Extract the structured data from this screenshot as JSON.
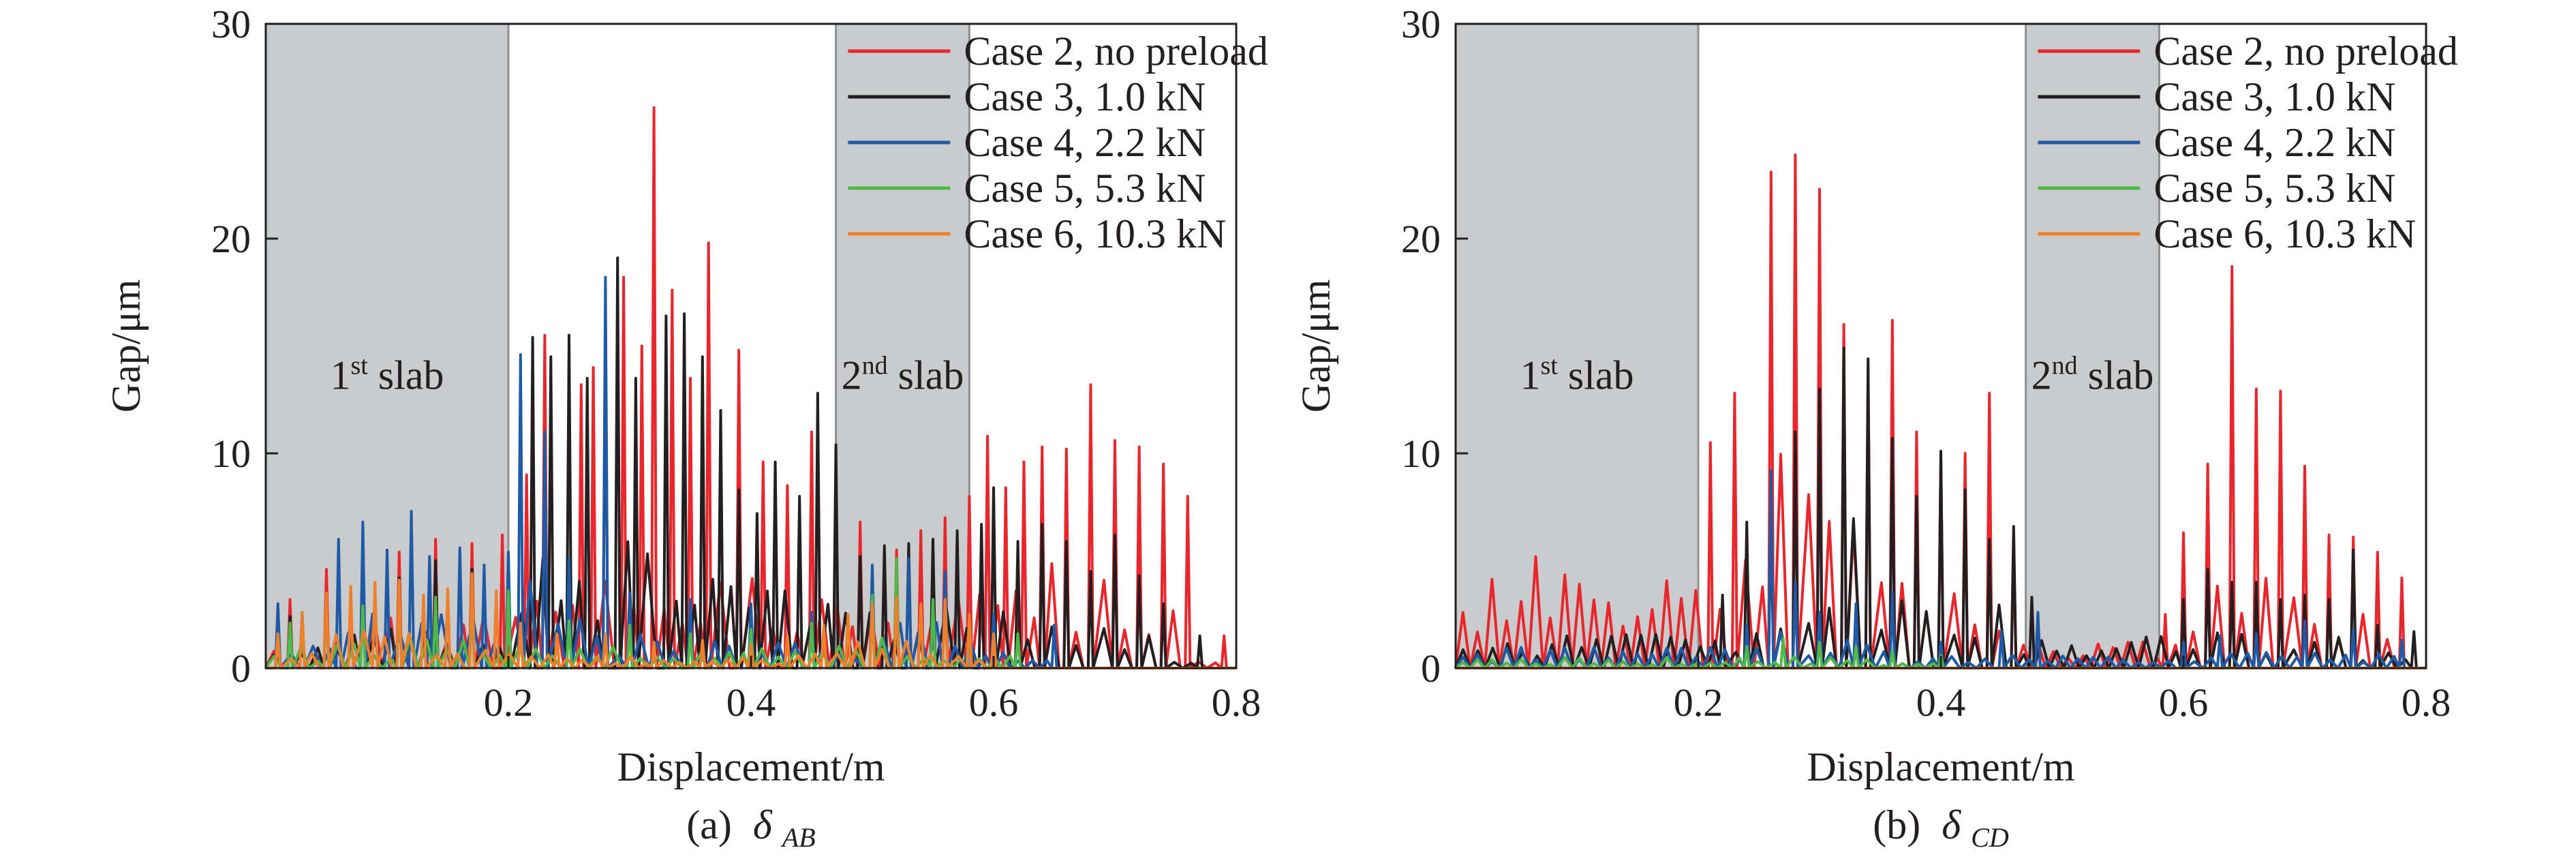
{
  "figure": {
    "panels": [
      {
        "caption_prefix": "(a)",
        "caption_symbol": "δ",
        "caption_subscript": "AB"
      },
      {
        "caption_prefix": "(b)",
        "caption_symbol": "δ",
        "caption_subscript": "CD"
      }
    ]
  },
  "chart_data": [
    {
      "type": "line",
      "title": "(a) δAB",
      "xlabel": "Displacement/m",
      "ylabel": "Gap/μm",
      "xlim": [
        0,
        0.8
      ],
      "ylim": [
        0,
        30
      ],
      "x_ticks": [
        0.2,
        0.4,
        0.6,
        0.8
      ],
      "x_tick_labels": [
        "0.2",
        "0.4",
        "0.6",
        "0.8"
      ],
      "y_ticks": [
        0,
        10,
        20,
        30
      ],
      "y_tick_labels": [
        "0",
        "10",
        "20",
        "30"
      ],
      "legend_position": "top-right",
      "shaded_regions": [
        {
          "label_main": "1",
          "label_sup": "st",
          "label_rest": " slab",
          "x_range": [
            0,
            0.2
          ]
        },
        {
          "label_main": "2",
          "label_sup": "nd",
          "label_rest": " slab",
          "x_range": [
            0.47,
            0.58
          ]
        }
      ],
      "series": [
        {
          "name": "Case 2, no preload",
          "color": "#e8262b",
          "peaks": [
            [
              0.02,
              3.2
            ],
            [
              0.05,
              4.6
            ],
            [
              0.08,
              5.6
            ],
            [
              0.11,
              5.4
            ],
            [
              0.14,
              6.0
            ],
            [
              0.17,
              5.8
            ],
            [
              0.195,
              6.2
            ],
            [
              0.215,
              9.0
            ],
            [
              0.23,
              15.5
            ],
            [
              0.26,
              13.2
            ],
            [
              0.27,
              14.0
            ],
            [
              0.295,
              18.2
            ],
            [
              0.31,
              15.0
            ],
            [
              0.32,
              26.1
            ],
            [
              0.335,
              17.6
            ],
            [
              0.35,
              13.5
            ],
            [
              0.365,
              19.8
            ],
            [
              0.39,
              14.8
            ],
            [
              0.41,
              9.6
            ],
            [
              0.43,
              8.5
            ],
            [
              0.45,
              11.0
            ],
            [
              0.49,
              6.8
            ],
            [
              0.52,
              5.5
            ],
            [
              0.54,
              6.4
            ],
            [
              0.56,
              7.0
            ],
            [
              0.58,
              8.0
            ],
            [
              0.595,
              10.8
            ],
            [
              0.61,
              8.4
            ],
            [
              0.625,
              9.6
            ],
            [
              0.64,
              10.3
            ],
            [
              0.66,
              10.2
            ],
            [
              0.68,
              13.2
            ],
            [
              0.7,
              10.6
            ],
            [
              0.72,
              10.3
            ],
            [
              0.74,
              9.5
            ],
            [
              0.76,
              8.0
            ],
            [
              0.79,
              1.5
            ]
          ]
        },
        {
          "name": "Case 3, 1.0 kN",
          "color": "#231f20",
          "peaks": [
            [
              0.02,
              2.4
            ],
            [
              0.05,
              3.3
            ],
            [
              0.08,
              4.0
            ],
            [
              0.11,
              4.2
            ],
            [
              0.14,
              5.0
            ],
            [
              0.17,
              4.6
            ],
            [
              0.2,
              5.2
            ],
            [
              0.22,
              15.4
            ],
            [
              0.235,
              14.5
            ],
            [
              0.25,
              15.5
            ],
            [
              0.265,
              13.5
            ],
            [
              0.28,
              16.4
            ],
            [
              0.29,
              19.1
            ],
            [
              0.305,
              13.5
            ],
            [
              0.33,
              16.4
            ],
            [
              0.345,
              16.5
            ],
            [
              0.36,
              14.5
            ],
            [
              0.375,
              12.0
            ],
            [
              0.39,
              8.3
            ],
            [
              0.405,
              7.2
            ],
            [
              0.42,
              9.6
            ],
            [
              0.44,
              8.0
            ],
            [
              0.455,
              12.8
            ],
            [
              0.47,
              10.4
            ],
            [
              0.49,
              5.2
            ],
            [
              0.51,
              5.7
            ],
            [
              0.53,
              5.8
            ],
            [
              0.55,
              6.0
            ],
            [
              0.57,
              6.4
            ],
            [
              0.59,
              6.7
            ],
            [
              0.6,
              8.4
            ],
            [
              0.62,
              5.9
            ],
            [
              0.64,
              6.7
            ],
            [
              0.66,
              5.9
            ],
            [
              0.68,
              4.5
            ],
            [
              0.7,
              6.2
            ],
            [
              0.72,
              4.3
            ],
            [
              0.74,
              3.0
            ],
            [
              0.77,
              1.5
            ]
          ]
        },
        {
          "name": "Case 4, 2.2 kN",
          "color": "#1f5aa6",
          "peaks": [
            [
              0.01,
              3.0
            ],
            [
              0.03,
              2.6
            ],
            [
              0.06,
              6.0
            ],
            [
              0.08,
              6.8
            ],
            [
              0.1,
              5.5
            ],
            [
              0.12,
              7.3
            ],
            [
              0.135,
              5.2
            ],
            [
              0.16,
              5.6
            ],
            [
              0.18,
              4.8
            ],
            [
              0.2,
              5.4
            ],
            [
              0.21,
              14.6
            ],
            [
              0.23,
              11.0
            ],
            [
              0.25,
              5.1
            ],
            [
              0.28,
              18.2
            ],
            [
              0.3,
              3.5
            ],
            [
              0.35,
              3.2
            ],
            [
              0.4,
              3.0
            ],
            [
              0.45,
              2.6
            ],
            [
              0.5,
              4.8
            ],
            [
              0.53,
              5.1
            ],
            [
              0.56,
              4.5
            ],
            [
              0.6,
              2.5
            ],
            [
              0.65,
              2.0
            ]
          ]
        },
        {
          "name": "Case 5, 5.3 kN",
          "color": "#4fb848",
          "peaks": [
            [
              0.02,
              2.1
            ],
            [
              0.05,
              2.8
            ],
            [
              0.08,
              2.9
            ],
            [
              0.11,
              3.2
            ],
            [
              0.14,
              3.3
            ],
            [
              0.17,
              3.0
            ],
            [
              0.2,
              3.6
            ],
            [
              0.25,
              2.2
            ],
            [
              0.3,
              2.0
            ],
            [
              0.35,
              1.6
            ],
            [
              0.4,
              1.8
            ],
            [
              0.45,
              2.1
            ],
            [
              0.5,
              3.4
            ],
            [
              0.52,
              5.1
            ],
            [
              0.55,
              3.2
            ],
            [
              0.58,
              2.0
            ],
            [
              0.62,
              1.6
            ]
          ]
        },
        {
          "name": "Case 6, 10.3 kN",
          "color": "#f07f2a",
          "peaks": [
            [
              0.01,
              1.6
            ],
            [
              0.03,
              2.6
            ],
            [
              0.05,
              3.5
            ],
            [
              0.07,
              3.8
            ],
            [
              0.09,
              4.0
            ],
            [
              0.11,
              4.1
            ],
            [
              0.13,
              3.4
            ],
            [
              0.15,
              3.7
            ],
            [
              0.17,
              4.4
            ],
            [
              0.19,
              3.6
            ],
            [
              0.21,
              2.1
            ],
            [
              0.24,
              1.6
            ],
            [
              0.28,
              1.6
            ],
            [
              0.32,
              1.2
            ],
            [
              0.36,
              1.3
            ],
            [
              0.4,
              1.1
            ],
            [
              0.43,
              1.5
            ],
            [
              0.46,
              2.0
            ],
            [
              0.48,
              2.5
            ],
            [
              0.5,
              3.0
            ],
            [
              0.52,
              3.3
            ],
            [
              0.54,
              3.0
            ],
            [
              0.56,
              3.2
            ],
            [
              0.58,
              2.5
            ],
            [
              0.6,
              1.6
            ]
          ]
        }
      ]
    },
    {
      "type": "line",
      "title": "(b) δCD",
      "xlabel": "Displacement/m",
      "ylabel": "Gap/μm",
      "xlim": [
        0,
        0.8
      ],
      "ylim": [
        0,
        30
      ],
      "x_ticks": [
        0.2,
        0.4,
        0.6,
        0.8
      ],
      "x_tick_labels": [
        "0.2",
        "0.4",
        "0.6",
        "0.8"
      ],
      "y_ticks": [
        0,
        10,
        20,
        30
      ],
      "y_tick_labels": [
        "0",
        "10",
        "20",
        "30"
      ],
      "legend_position": "top-right",
      "shaded_regions": [
        {
          "label_main": "1",
          "label_sup": "st",
          "label_rest": " slab",
          "x_range": [
            0,
            0.2
          ]
        },
        {
          "label_main": "2",
          "label_sup": "nd",
          "label_rest": " slab",
          "x_range": [
            0.47,
            0.58
          ]
        }
      ],
      "series": [
        {
          "name": "Case 2, no preload",
          "color": "#e8262b",
          "peaks": [
            [
              0.21,
              10.5
            ],
            [
              0.23,
              12.8
            ],
            [
              0.26,
              23.1
            ],
            [
              0.28,
              23.9
            ],
            [
              0.3,
              22.3
            ],
            [
              0.32,
              16.0
            ],
            [
              0.34,
              14.0
            ],
            [
              0.36,
              16.2
            ],
            [
              0.38,
              11.0
            ],
            [
              0.4,
              9.8
            ],
            [
              0.42,
              10.0
            ],
            [
              0.44,
              12.8
            ],
            [
              0.46,
              5.4
            ],
            [
              0.585,
              2.5
            ],
            [
              0.6,
              6.3
            ],
            [
              0.62,
              9.5
            ],
            [
              0.64,
              18.7
            ],
            [
              0.66,
              13.0
            ],
            [
              0.68,
              12.9
            ],
            [
              0.7,
              9.4
            ],
            [
              0.72,
              6.2
            ],
            [
              0.74,
              6.1
            ],
            [
              0.76,
              5.4
            ],
            [
              0.78,
              4.2
            ]
          ]
        },
        {
          "name": "Case 3, 1.0 kN",
          "color": "#231f20",
          "peaks": [
            [
              0.22,
              3.4
            ],
            [
              0.24,
              6.8
            ],
            [
              0.26,
              7.5
            ],
            [
              0.28,
              11.0
            ],
            [
              0.3,
              13.0
            ],
            [
              0.32,
              14.9
            ],
            [
              0.34,
              14.4
            ],
            [
              0.36,
              10.7
            ],
            [
              0.38,
              8.0
            ],
            [
              0.4,
              10.1
            ],
            [
              0.42,
              8.3
            ],
            [
              0.44,
              6.0
            ],
            [
              0.46,
              6.6
            ],
            [
              0.475,
              3.3
            ],
            [
              0.6,
              3.2
            ],
            [
              0.62,
              4.6
            ],
            [
              0.64,
              4.0
            ],
            [
              0.66,
              4.0
            ],
            [
              0.68,
              3.2
            ],
            [
              0.7,
              3.4
            ],
            [
              0.72,
              3.2
            ],
            [
              0.74,
              5.5
            ],
            [
              0.76,
              2.0
            ],
            [
              0.79,
              1.7
            ]
          ]
        },
        {
          "name": "Case 4, 2.2 kN",
          "color": "#1f5aa6",
          "peaks": [
            [
              0.24,
              2.0
            ],
            [
              0.26,
              9.2
            ],
            [
              0.28,
              4.0
            ],
            [
              0.3,
              2.6
            ],
            [
              0.33,
              3.0
            ],
            [
              0.36,
              3.5
            ],
            [
              0.4,
              1.2
            ],
            [
              0.45,
              1.7
            ],
            [
              0.48,
              2.6
            ],
            [
              0.6,
              1.2
            ],
            [
              0.63,
              1.5
            ],
            [
              0.66,
              1.6
            ],
            [
              0.7,
              2.2
            ],
            [
              0.74,
              1.8
            ],
            [
              0.78,
              1.3
            ]
          ]
        },
        {
          "name": "Case 5, 5.3 kN",
          "color": "#4fb848",
          "peaks": [
            [
              0.24,
              1.0
            ],
            [
              0.27,
              1.4
            ],
            [
              0.3,
              1.2
            ],
            [
              0.33,
              1.0
            ],
            [
              0.36,
              0.8
            ],
            [
              0.4,
              0.6
            ]
          ]
        },
        {
          "name": "Case 6, 10.3 kN",
          "color": "#f07f2a",
          "peaks": []
        }
      ]
    }
  ]
}
